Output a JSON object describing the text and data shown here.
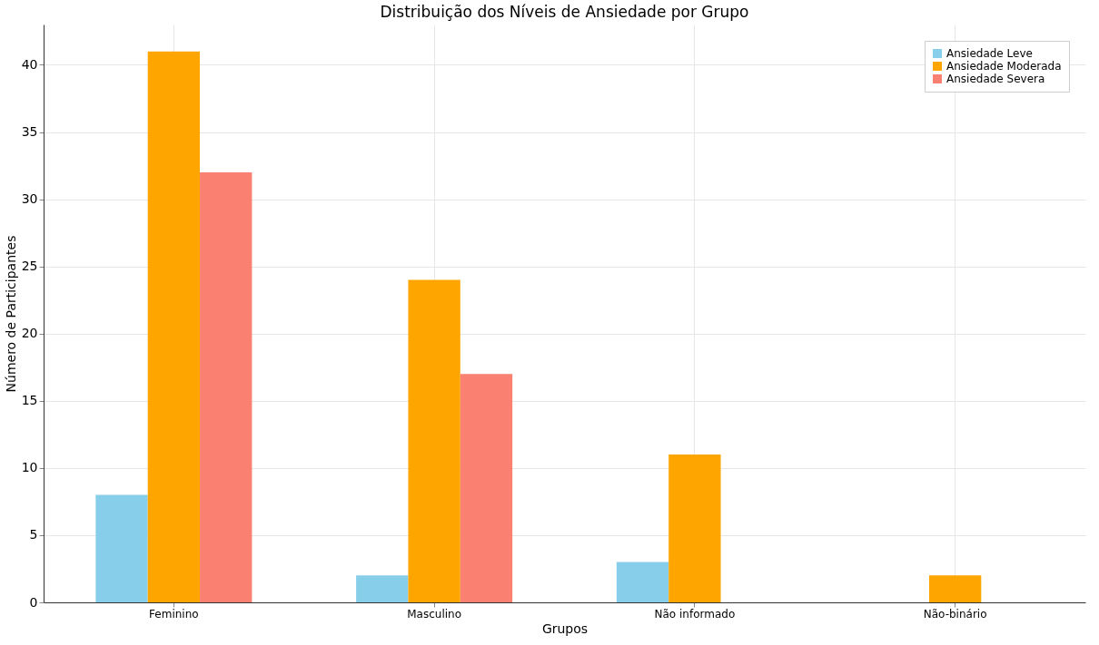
{
  "chart_data": {
    "type": "bar",
    "title": "Distribuição dos Níveis de Ansiedade por Grupo",
    "xlabel": "Grupos",
    "ylabel": "Número de Participantes",
    "categories": [
      "Feminino",
      "Masculino",
      "Não informado",
      "Não-binário"
    ],
    "series": [
      {
        "name": "Ansiedade Leve",
        "color": "#87ceeb",
        "values": [
          8,
          2,
          3,
          0
        ]
      },
      {
        "name": "Ansiedade Moderada",
        "color": "#ffa500",
        "values": [
          41,
          24,
          11,
          2
        ]
      },
      {
        "name": "Ansiedade Severa",
        "color": "#fa8072",
        "values": [
          32,
          17,
          0,
          0
        ]
      }
    ],
    "ylim": [
      0,
      43
    ],
    "yticks": [
      0,
      5,
      10,
      15,
      20,
      25,
      30,
      35,
      40
    ],
    "grid": true,
    "legend": "top right"
  }
}
